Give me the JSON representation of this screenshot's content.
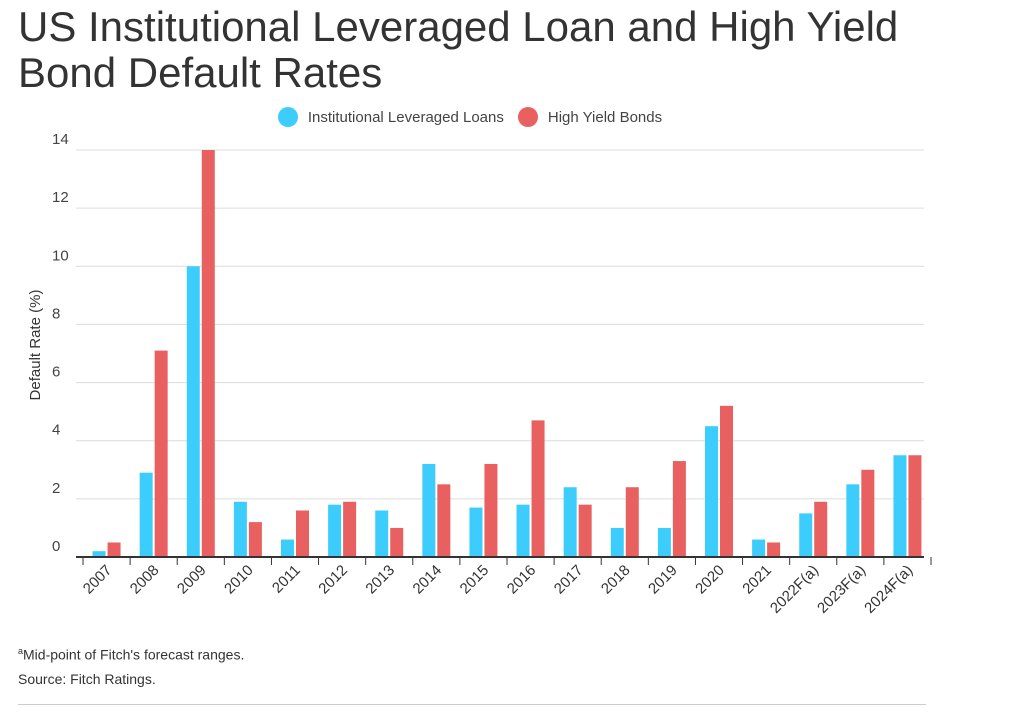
{
  "chart_data": {
    "type": "bar",
    "title": "US Institutional Leveraged Loan and High Yield Bond Default Rates",
    "xlabel": "",
    "ylabel": "Default Rate (%)",
    "ylim": [
      0,
      14
    ],
    "yticks": [
      0,
      2,
      4,
      6,
      8,
      10,
      12,
      14
    ],
    "grid": true,
    "legend_position": "top-center",
    "categories": [
      "2007",
      "2008",
      "2009",
      "2010",
      "2011",
      "2012",
      "2013",
      "2014",
      "2015",
      "2016",
      "2017",
      "2018",
      "2019",
      "2020",
      "2021",
      "2022F(a)",
      "2023F(a)",
      "2024F(a)"
    ],
    "series": [
      {
        "name": "Institutional Leveraged Loans",
        "color": "#3dcdfd",
        "values": [
          0.2,
          2.9,
          10.0,
          1.9,
          0.6,
          1.8,
          1.6,
          3.2,
          1.7,
          1.8,
          2.4,
          1.0,
          1.0,
          4.5,
          0.6,
          1.5,
          2.5,
          3.5
        ]
      },
      {
        "name": "High Yield Bonds",
        "color": "#e86060",
        "values": [
          0.5,
          7.1,
          14.0,
          1.2,
          1.6,
          1.9,
          1.0,
          2.5,
          3.2,
          4.7,
          1.8,
          2.4,
          3.3,
          5.2,
          0.5,
          1.9,
          3.0,
          3.5
        ]
      }
    ]
  },
  "footnote": {
    "marker": "a",
    "text": "Mid-point of Fitch's forecast ranges."
  },
  "source": "Source: Fitch Ratings."
}
